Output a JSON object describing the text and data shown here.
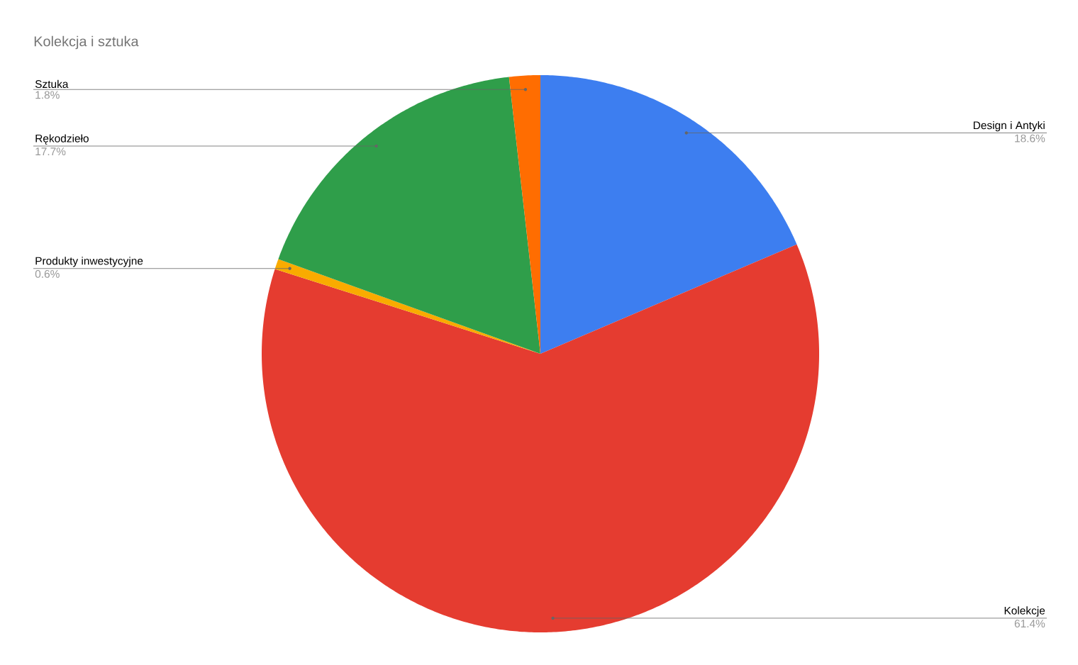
{
  "chart_data": {
    "type": "pie",
    "title": "Kolekcja i sztuka",
    "categories": [
      "Design i Antyki",
      "Kolekcje",
      "Produkty inwestycyjne",
      "Rękodzieło",
      "Sztuka"
    ],
    "values": [
      18.6,
      61.4,
      0.6,
      17.7,
      1.8
    ],
    "colors": [
      "#3d7ef0",
      "#e53c30",
      "#f9ab00",
      "#2f9e4a",
      "#ff6d01"
    ],
    "value_labels": [
      "18.6%",
      "61.4%",
      "0.6%",
      "17.7%",
      "1.8%"
    ]
  }
}
